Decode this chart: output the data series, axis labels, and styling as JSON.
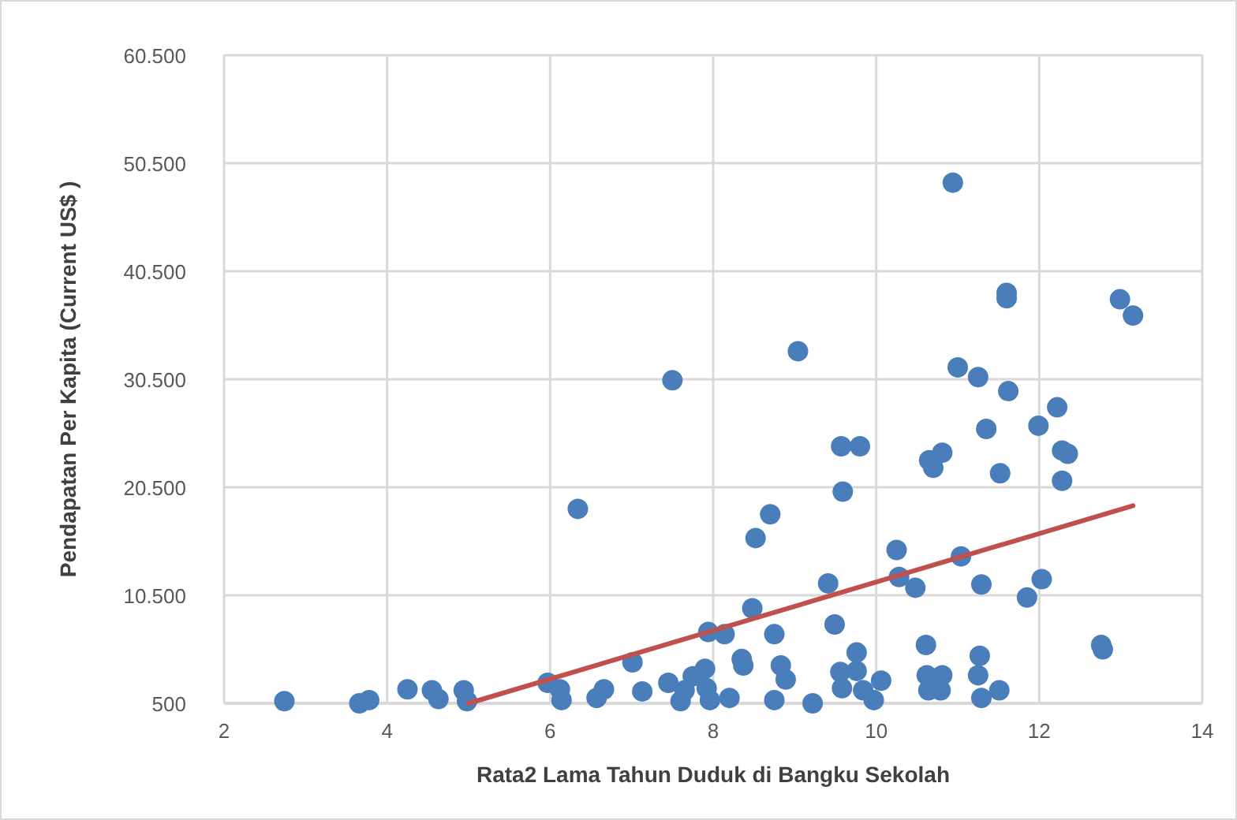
{
  "chart_data": {
    "type": "scatter",
    "xlabel": "Rata2 Lama Tahun Duduk di Bangku Sekolah",
    "ylabel": "Pendapatan Per Kapita (Current US$ )",
    "xlim": [
      2,
      14
    ],
    "xticks": [
      2,
      4,
      6,
      8,
      10,
      12,
      14
    ],
    "ylim": [
      500,
      60500
    ],
    "yticks": [
      {
        "value": 500,
        "label": "500"
      },
      {
        "value": 10500,
        "label": "10.500"
      },
      {
        "value": 20500,
        "label": "20.500"
      },
      {
        "value": 30500,
        "label": "30.500"
      },
      {
        "value": 40500,
        "label": "40.500"
      },
      {
        "value": 50500,
        "label": "50.500"
      },
      {
        "value": 60500,
        "label": "60.500"
      }
    ],
    "grid": true,
    "series": [
      {
        "color": "#4a7ebb",
        "marker": "circle",
        "x": [
          2.74,
          3.66,
          3.78,
          4.25,
          4.55,
          4.63,
          4.94,
          4.98,
          5.97,
          6.12,
          6.14,
          6.34,
          6.57,
          6.66,
          7.13,
          7.01,
          7.5,
          7.45,
          7.6,
          7.75,
          7.9,
          7.92,
          7.96,
          7.94,
          8.14,
          8.35,
          8.37,
          8.48,
          8.52,
          8.7,
          8.75,
          8.83,
          8.89,
          8.75,
          9.04,
          9.22,
          9.41,
          9.49,
          9.57,
          9.59,
          9.8,
          9.76,
          9.56,
          9.58,
          9.76,
          9.84,
          9.97,
          10.06,
          10.25,
          10.28,
          10.48,
          10.61,
          10.62,
          10.64,
          10.81,
          10.79,
          10.65,
          10.7,
          10.81,
          10.94,
          11.0,
          11.04,
          11.25,
          11.35,
          11.29,
          11.27,
          11.25,
          11.29,
          11.51,
          11.52,
          11.6,
          11.6,
          11.62,
          11.85,
          12.03,
          11.99,
          12.22,
          12.28,
          12.35,
          12.28,
          12.76,
          12.78,
          12.99,
          13.15,
          7.65,
          8.2
        ],
        "values": [
          700,
          500,
          800,
          1800,
          1700,
          900,
          1700,
          700,
          2400,
          1800,
          800,
          18500,
          1000,
          1800,
          1600,
          4300,
          30400,
          2400,
          700,
          3000,
          3700,
          1900,
          800,
          7100,
          6900,
          4600,
          4000,
          9300,
          15800,
          18000,
          6900,
          4000,
          2700,
          800,
          33100,
          500,
          11600,
          7800,
          24300,
          20100,
          24300,
          5200,
          3400,
          1900,
          3500,
          1700,
          800,
          2600,
          14700,
          12200,
          11200,
          5900,
          3100,
          1700,
          3100,
          1700,
          23000,
          22300,
          23700,
          48700,
          31600,
          14100,
          30700,
          25900,
          11500,
          4900,
          3100,
          1000,
          1700,
          21800,
          38500,
          38000,
          29400,
          10300,
          12000,
          26200,
          27900,
          23900,
          23600,
          21100,
          5900,
          5500,
          37900,
          36400,
          1700,
          1000
        ]
      },
      {
        "type": "line",
        "color": "#c0504d",
        "x": [
          5,
          13.15
        ],
        "values": [
          500,
          18800
        ]
      }
    ]
  }
}
